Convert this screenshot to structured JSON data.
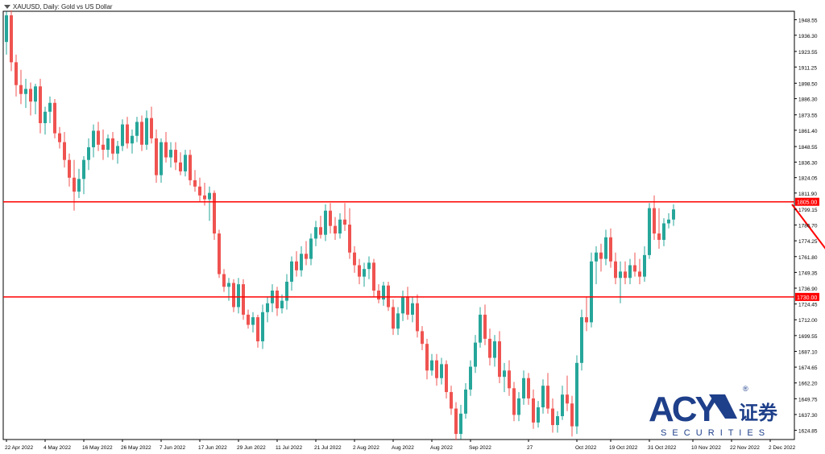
{
  "window": {
    "title": "XAUUSD, Daily:  Gold vs US Dollar"
  },
  "logo": {
    "mark": "ACY",
    "reg": "®",
    "cjk": "证券",
    "tagline": "S E C U R I T I E S"
  },
  "colors": {
    "bull": "#26a69a",
    "bear": "#ef5350",
    "line": "#ff0000",
    "logo_blue": "#1e3f8a",
    "logo_red": "#d42a2a"
  },
  "chart_data": {
    "type": "candlestick",
    "symbol": "XAUUSD",
    "timeframe": "Daily",
    "ylim": [
      1617.6,
      1955.2
    ],
    "y_ticks": [
      "1948.55",
      "1936.30",
      "1923.55",
      "1911.25",
      "1898.50",
      "1886.30",
      "1873.55",
      "1861.40",
      "1848.55",
      "1836.30",
      "1824.05",
      "1811.90",
      "1799.15",
      "1786.70",
      "1774.25",
      "1761.80",
      "1749.35",
      "1736.90",
      "1724.45",
      "1712.00",
      "1699.55",
      "1687.10",
      "1674.65",
      "1662.20",
      "1649.75",
      "1637.30",
      "1624.85"
    ],
    "x_labels": [
      {
        "label": "22 Apr 2022",
        "index": 0
      },
      {
        "label": "4 May 2022",
        "index": 8
      },
      {
        "label": "16 May 2022",
        "index": 16
      },
      {
        "label": "26 May 2022",
        "index": 24
      },
      {
        "label": "7 Jun 2022",
        "index": 32
      },
      {
        "label": "17 Jun 2022",
        "index": 40
      },
      {
        "label": "29 Jun 2022",
        "index": 48
      },
      {
        "label": "11 Jul 2022",
        "index": 56
      },
      {
        "label": "21 Jul 2022",
        "index": 64
      },
      {
        "label": "2 Aug 2022",
        "index": 72
      },
      {
        "label": "Aug 2022",
        "index": 80
      },
      {
        "label": "Aug 2022",
        "index": 88
      },
      {
        "label": "Sep 2022",
        "index": 96
      },
      {
        "label": "27",
        "index": 108
      },
      {
        "label": "Oct 2022",
        "index": 118
      },
      {
        "label": "19 Oct 2022",
        "index": 125
      },
      {
        "label": "31 Oct 2022",
        "index": 133
      },
      {
        "label": "10 Nov 2022",
        "index": 142
      },
      {
        "label": "22 Nov 2022",
        "index": 150
      },
      {
        "label": "2 Dec 2022",
        "index": 158
      }
    ],
    "h_lines": [
      {
        "price": 1805.0,
        "label": "1805.00"
      },
      {
        "price": 1730.0,
        "label": "1730.00"
      }
    ],
    "projection": {
      "from": {
        "index": 162.5,
        "price": 1803
      },
      "to": {
        "index": 176,
        "price": 1735
      }
    },
    "ohlc": [
      [
        1931,
        1955,
        1921,
        1952
      ],
      [
        1952,
        1956,
        1908,
        1915
      ],
      [
        1915,
        1921,
        1888,
        1897
      ],
      [
        1897,
        1909,
        1882,
        1890
      ],
      [
        1890,
        1902,
        1879,
        1894
      ],
      [
        1894,
        1899,
        1873,
        1884
      ],
      [
        1884,
        1898,
        1874,
        1896
      ],
      [
        1896,
        1902,
        1859,
        1867
      ],
      [
        1867,
        1880,
        1858,
        1876
      ],
      [
        1876,
        1888,
        1867,
        1883
      ],
      [
        1883,
        1886,
        1855,
        1859
      ],
      [
        1859,
        1864,
        1847,
        1852
      ],
      [
        1852,
        1860,
        1832,
        1838
      ],
      [
        1838,
        1843,
        1817,
        1824
      ],
      [
        1824,
        1838,
        1798,
        1813
      ],
      [
        1813,
        1831,
        1808,
        1823
      ],
      [
        1823,
        1841,
        1811,
        1838
      ],
      [
        1838,
        1855,
        1830,
        1848
      ],
      [
        1848,
        1866,
        1840,
        1861
      ],
      [
        1861,
        1868,
        1845,
        1850
      ],
      [
        1850,
        1862,
        1838,
        1846
      ],
      [
        1846,
        1858,
        1840,
        1855
      ],
      [
        1855,
        1860,
        1838,
        1843
      ],
      [
        1843,
        1853,
        1835,
        1849
      ],
      [
        1849,
        1870,
        1845,
        1866
      ],
      [
        1866,
        1872,
        1847,
        1851
      ],
      [
        1851,
        1862,
        1843,
        1857
      ],
      [
        1857,
        1872,
        1852,
        1868
      ],
      [
        1868,
        1873,
        1845,
        1850
      ],
      [
        1850,
        1877,
        1846,
        1871
      ],
      [
        1871,
        1880,
        1851,
        1855
      ],
      [
        1855,
        1862,
        1820,
        1826
      ],
      [
        1826,
        1855,
        1820,
        1852
      ],
      [
        1852,
        1860,
        1836,
        1840
      ],
      [
        1840,
        1852,
        1832,
        1846
      ],
      [
        1846,
        1852,
        1830,
        1836
      ],
      [
        1836,
        1844,
        1826,
        1829
      ],
      [
        1829,
        1846,
        1825,
        1842
      ],
      [
        1842,
        1846,
        1818,
        1822
      ],
      [
        1822,
        1830,
        1813,
        1817
      ],
      [
        1817,
        1824,
        1805,
        1810
      ],
      [
        1810,
        1820,
        1802,
        1807
      ],
      [
        1807,
        1817,
        1790,
        1812
      ],
      [
        1812,
        1814,
        1775,
        1780
      ],
      [
        1780,
        1783,
        1745,
        1748
      ],
      [
        1748,
        1752,
        1734,
        1738
      ],
      [
        1738,
        1745,
        1727,
        1741
      ],
      [
        1741,
        1744,
        1718,
        1722
      ],
      [
        1722,
        1745,
        1717,
        1740
      ],
      [
        1740,
        1744,
        1712,
        1716
      ],
      [
        1716,
        1720,
        1705,
        1708
      ],
      [
        1708,
        1718,
        1702,
        1714
      ],
      [
        1714,
        1716,
        1690,
        1695
      ],
      [
        1695,
        1724,
        1689,
        1718
      ],
      [
        1718,
        1730,
        1710,
        1725
      ],
      [
        1725,
        1740,
        1718,
        1735
      ],
      [
        1735,
        1738,
        1715,
        1721
      ],
      [
        1721,
        1732,
        1717,
        1727
      ],
      [
        1727,
        1748,
        1720,
        1742
      ],
      [
        1742,
        1762,
        1735,
        1758
      ],
      [
        1758,
        1766,
        1746,
        1751
      ],
      [
        1751,
        1770,
        1746,
        1764
      ],
      [
        1764,
        1774,
        1755,
        1760
      ],
      [
        1760,
        1780,
        1755,
        1776
      ],
      [
        1776,
        1790,
        1770,
        1785
      ],
      [
        1785,
        1794,
        1776,
        1779
      ],
      [
        1779,
        1803,
        1774,
        1798
      ],
      [
        1798,
        1804,
        1780,
        1786
      ],
      [
        1786,
        1793,
        1775,
        1780
      ],
      [
        1780,
        1796,
        1776,
        1791
      ],
      [
        1791,
        1804,
        1782,
        1787
      ],
      [
        1787,
        1800,
        1760,
        1765
      ],
      [
        1765,
        1770,
        1749,
        1755
      ],
      [
        1755,
        1760,
        1740,
        1746
      ],
      [
        1746,
        1757,
        1738,
        1752
      ],
      [
        1752,
        1762,
        1744,
        1757
      ],
      [
        1757,
        1760,
        1730,
        1735
      ],
      [
        1735,
        1740,
        1725,
        1728
      ],
      [
        1728,
        1742,
        1723,
        1739
      ],
      [
        1739,
        1742,
        1719,
        1722
      ],
      [
        1722,
        1728,
        1700,
        1705
      ],
      [
        1705,
        1722,
        1700,
        1717
      ],
      [
        1717,
        1735,
        1711,
        1730
      ],
      [
        1730,
        1738,
        1712,
        1716
      ],
      [
        1716,
        1730,
        1710,
        1725
      ],
      [
        1725,
        1732,
        1698,
        1703
      ],
      [
        1703,
        1707,
        1688,
        1693
      ],
      [
        1693,
        1697,
        1665,
        1672
      ],
      [
        1672,
        1685,
        1668,
        1680
      ],
      [
        1680,
        1685,
        1660,
        1666
      ],
      [
        1666,
        1682,
        1661,
        1677
      ],
      [
        1677,
        1680,
        1650,
        1655
      ],
      [
        1655,
        1660,
        1637,
        1642
      ],
      [
        1642,
        1647,
        1617,
        1622
      ],
      [
        1622,
        1645,
        1618,
        1638
      ],
      [
        1638,
        1662,
        1634,
        1657
      ],
      [
        1657,
        1680,
        1652,
        1675
      ],
      [
        1675,
        1700,
        1670,
        1694
      ],
      [
        1694,
        1722,
        1690,
        1716
      ],
      [
        1716,
        1724,
        1692,
        1697
      ],
      [
        1697,
        1705,
        1676,
        1682
      ],
      [
        1682,
        1700,
        1675,
        1695
      ],
      [
        1695,
        1703,
        1662,
        1667
      ],
      [
        1667,
        1678,
        1655,
        1672
      ],
      [
        1672,
        1680,
        1652,
        1658
      ],
      [
        1658,
        1663,
        1632,
        1637
      ],
      [
        1637,
        1655,
        1632,
        1650
      ],
      [
        1650,
        1672,
        1645,
        1666
      ],
      [
        1666,
        1670,
        1645,
        1650
      ],
      [
        1650,
        1657,
        1626,
        1631
      ],
      [
        1631,
        1648,
        1627,
        1643
      ],
      [
        1643,
        1665,
        1638,
        1660
      ],
      [
        1660,
        1670,
        1638,
        1642
      ],
      [
        1642,
        1650,
        1623,
        1629
      ],
      [
        1629,
        1640,
        1623,
        1636
      ],
      [
        1636,
        1660,
        1633,
        1653
      ],
      [
        1653,
        1668,
        1640,
        1646
      ],
      [
        1646,
        1652,
        1620,
        1628
      ],
      [
        1628,
        1684,
        1622,
        1678
      ],
      [
        1678,
        1720,
        1672,
        1714
      ],
      [
        1714,
        1730,
        1703,
        1710
      ],
      [
        1710,
        1765,
        1706,
        1758
      ],
      [
        1758,
        1770,
        1740,
        1765
      ],
      [
        1765,
        1772,
        1750,
        1760
      ],
      [
        1760,
        1783,
        1755,
        1777
      ],
      [
        1777,
        1784,
        1753,
        1758
      ],
      [
        1758,
        1765,
        1740,
        1745
      ],
      [
        1745,
        1758,
        1725,
        1750
      ],
      [
        1750,
        1758,
        1740,
        1745
      ],
      [
        1745,
        1760,
        1740,
        1755
      ],
      [
        1755,
        1765,
        1746,
        1750
      ],
      [
        1750,
        1760,
        1740,
        1746
      ],
      [
        1746,
        1770,
        1742,
        1763
      ],
      [
        1763,
        1804,
        1760,
        1800
      ],
      [
        1800,
        1810,
        1775,
        1780
      ],
      [
        1780,
        1800,
        1768,
        1775
      ],
      [
        1775,
        1792,
        1770,
        1788
      ],
      [
        1788,
        1796,
        1784,
        1791
      ],
      [
        1791,
        1803,
        1786,
        1799
      ]
    ],
    "ohlc_index_offset": 0
  }
}
